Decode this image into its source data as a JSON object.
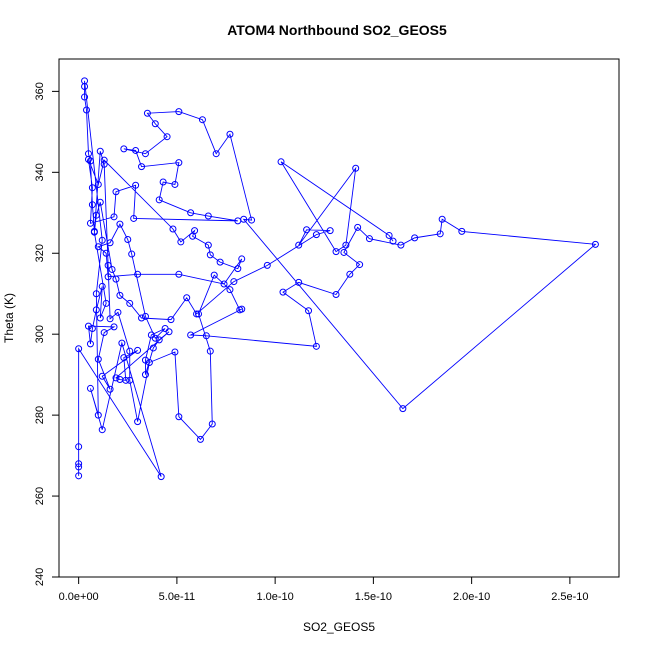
{
  "chart_data": {
    "type": "scatter",
    "title": "ATOM4 Northbound SO2_GEOS5",
    "xlabel": "SO2_GEOS5",
    "ylabel": "Theta (K)",
    "xlim": [
      -1e-11,
      2.75e-10
    ],
    "ylim": [
      240,
      368
    ],
    "xticks": [
      0,
      5e-11,
      1e-10,
      1.5e-10,
      2e-10,
      2.5e-10
    ],
    "xtick_labels": [
      "0.0e+00",
      "5.0e-11",
      "1.0e-10",
      "1.5e-10",
      "2.0e-10",
      "2.5e-10"
    ],
    "yticks": [
      240,
      260,
      280,
      300,
      320,
      340,
      360
    ],
    "ytick_labels": [
      "240",
      "260",
      "280",
      "300",
      "320",
      "340",
      "360"
    ],
    "grid": false,
    "series": [
      {
        "color": "#0000ff",
        "marker": "open-circle",
        "connected": true,
        "points": [
          [
            0.0,
            265.0
          ],
          [
            0.0,
            267.2
          ],
          [
            0.0,
            268.0
          ],
          [
            0.0,
            272.2
          ],
          [
            0.0,
            296.4
          ],
          [
            4.2e-11,
            264.8
          ],
          [
            2.2e-11,
            297.8
          ],
          [
            1.2e-11,
            276.4
          ],
          [
            6e-12,
            286.6
          ],
          [
            1e-11,
            280.0
          ],
          [
            9e-12,
            310.0
          ],
          [
            1.2e-11,
            323.2
          ],
          [
            3e-12,
            362.6
          ],
          [
            3e-12,
            361.2
          ],
          [
            3e-12,
            358.6
          ],
          [
            4e-12,
            355.4
          ],
          [
            5e-12,
            344.6
          ],
          [
            6e-12,
            342.8
          ],
          [
            7e-12,
            332.0
          ],
          [
            8e-12,
            325.4
          ],
          [
            1.1e-11,
            345.2
          ],
          [
            1.3e-11,
            342.0
          ],
          [
            1.5e-11,
            317.0
          ],
          [
            1.6e-11,
            303.8
          ],
          [
            2e-11,
            305.4
          ],
          [
            2.6e-11,
            295.8
          ],
          [
            2.6e-11,
            288.6
          ],
          [
            3e-11,
            278.4
          ],
          [
            3.6e-11,
            293.0
          ],
          [
            4.9e-11,
            295.6
          ],
          [
            5.1e-11,
            279.6
          ],
          [
            6.2e-11,
            274.0
          ],
          [
            6.8e-11,
            277.8
          ],
          [
            6.7e-11,
            295.8
          ],
          [
            6.1e-11,
            305.0
          ],
          [
            6.9e-11,
            314.6
          ],
          [
            7.7e-11,
            311.0
          ],
          [
            8.2e-11,
            306.0
          ],
          [
            8.3e-11,
            306.2
          ],
          [
            5.7e-11,
            299.8
          ],
          [
            6.5e-11,
            299.6
          ],
          [
            1.21e-10,
            297.0
          ],
          [
            1.17e-10,
            305.8
          ],
          [
            1.04e-10,
            310.4
          ],
          [
            1.12e-10,
            312.8
          ],
          [
            1.31e-10,
            309.8
          ],
          [
            1.38e-10,
            314.8
          ],
          [
            1.43e-10,
            317.2
          ],
          [
            1.35e-10,
            320.2
          ],
          [
            1.42e-10,
            326.4
          ],
          [
            1.48e-10,
            323.6
          ],
          [
            1.64e-10,
            322.0
          ],
          [
            1.71e-10,
            323.8
          ],
          [
            1.84e-10,
            324.8
          ],
          [
            1.85e-10,
            328.4
          ],
          [
            1.95e-10,
            325.4
          ],
          [
            2.63e-10,
            322.2
          ],
          [
            1.65e-10,
            281.6
          ],
          [
            8.4e-11,
            328.4
          ],
          [
            8.8e-11,
            328.2
          ],
          [
            7.7e-11,
            349.4
          ],
          [
            7e-11,
            344.6
          ],
          [
            6.3e-11,
            353.0
          ],
          [
            5.1e-11,
            355.0
          ],
          [
            3.5e-11,
            354.6
          ],
          [
            3.9e-11,
            352.0
          ],
          [
            4.5e-11,
            348.8
          ],
          [
            3.4e-11,
            344.6
          ],
          [
            2.3e-11,
            345.8
          ],
          [
            2.9e-11,
            345.4
          ],
          [
            3.2e-11,
            341.4
          ],
          [
            5.1e-11,
            342.4
          ],
          [
            4.9e-11,
            337.0
          ],
          [
            4.3e-11,
            337.6
          ],
          [
            4.1e-11,
            333.2
          ],
          [
            5.7e-11,
            330.0
          ],
          [
            6.6e-11,
            329.2
          ],
          [
            8.1e-11,
            328.0
          ],
          [
            2.8e-11,
            328.6
          ],
          [
            2.9e-11,
            336.8
          ],
          [
            1.9e-11,
            335.2
          ],
          [
            1.8e-11,
            329.0
          ],
          [
            6e-12,
            327.4
          ],
          [
            7e-12,
            336.2
          ],
          [
            5e-12,
            343.2
          ],
          [
            1e-11,
            337.0
          ],
          [
            1.3e-11,
            343.0
          ],
          [
            4.8e-11,
            326.0
          ],
          [
            5.2e-11,
            322.8
          ],
          [
            5.9e-11,
            325.6
          ],
          [
            5.8e-11,
            324.2
          ],
          [
            6.6e-11,
            322.0
          ],
          [
            6.7e-11,
            319.6
          ],
          [
            7.2e-11,
            317.8
          ],
          [
            8.1e-11,
            316.2
          ],
          [
            8.3e-11,
            318.6
          ],
          [
            7.4e-11,
            312.4
          ],
          [
            5.1e-11,
            314.8
          ],
          [
            3e-11,
            314.8
          ],
          [
            1.5e-11,
            314.2
          ],
          [
            1.4e-11,
            320.0
          ],
          [
            1e-11,
            321.6
          ],
          [
            1.6e-11,
            322.6
          ],
          [
            2.1e-11,
            327.2
          ],
          [
            2.5e-11,
            323.4
          ],
          [
            2.7e-11,
            319.8
          ],
          [
            3.4e-11,
            304.4
          ],
          [
            3.9e-11,
            299.0
          ],
          [
            4.4e-11,
            301.4
          ],
          [
            3.7e-11,
            299.8
          ],
          [
            3.4e-11,
            293.6
          ],
          [
            3.4e-11,
            290.0
          ],
          [
            3.8e-11,
            296.6
          ],
          [
            4.1e-11,
            298.6
          ],
          [
            4.6e-11,
            300.6
          ],
          [
            1.9e-11,
            289.2
          ],
          [
            2.1e-11,
            288.8
          ],
          [
            2.4e-11,
            288.6
          ],
          [
            2.3e-11,
            294.2
          ],
          [
            3e-11,
            296.0
          ],
          [
            1.2e-11,
            289.6
          ],
          [
            1.6e-11,
            286.4
          ],
          [
            1e-11,
            293.8
          ],
          [
            1.3e-11,
            300.4
          ],
          [
            1.8e-11,
            301.8
          ],
          [
            5e-12,
            302.0
          ],
          [
            6e-12,
            297.6
          ],
          [
            7e-12,
            301.4
          ],
          [
            9e-12,
            306.0
          ],
          [
            1.2e-11,
            311.8
          ],
          [
            1.1e-11,
            304.0
          ],
          [
            1.4e-11,
            307.6
          ],
          [
            8e-12,
            325.2
          ],
          [
            9e-12,
            329.4
          ],
          [
            1.1e-11,
            332.6
          ],
          [
            1.7e-11,
            316.0
          ],
          [
            1.9e-11,
            313.6
          ],
          [
            2.1e-11,
            309.6
          ],
          [
            2.6e-11,
            307.6
          ],
          [
            3.2e-11,
            304.0
          ],
          [
            4.7e-11,
            303.6
          ],
          [
            5.5e-11,
            309.0
          ],
          [
            6e-11,
            305.0
          ],
          [
            7.9e-11,
            313.0
          ],
          [
            9.6e-11,
            317.0
          ],
          [
            1.21e-10,
            324.6
          ],
          [
            1.28e-10,
            325.6
          ],
          [
            1.16e-10,
            325.8
          ],
          [
            1.12e-10,
            322.0
          ],
          [
            1.41e-10,
            341.0
          ],
          [
            1.36e-10,
            322.0
          ],
          [
            1.31e-10,
            320.4
          ],
          [
            1.03e-10,
            342.6
          ],
          [
            1.58e-10,
            324.4
          ],
          [
            1.6e-10,
            323.0
          ]
        ]
      }
    ]
  }
}
